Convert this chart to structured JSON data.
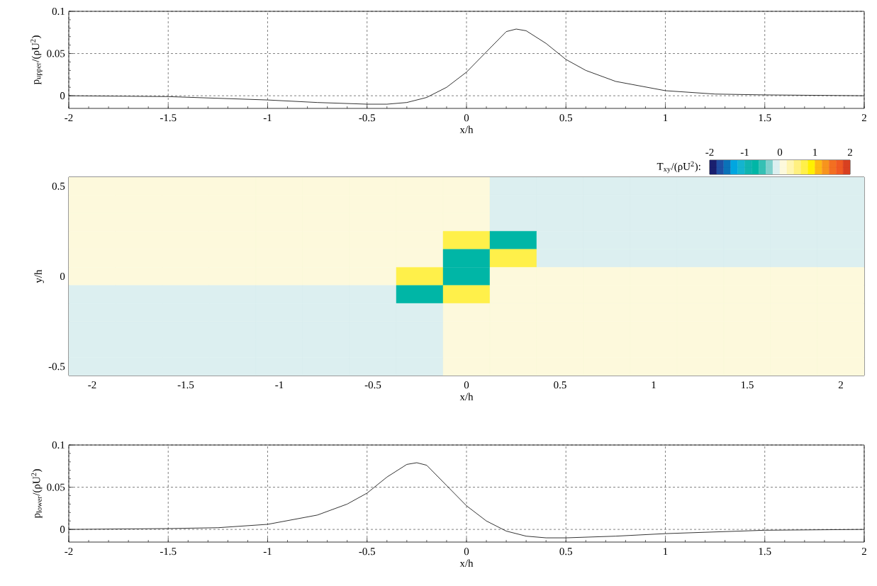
{
  "chart_data": [
    {
      "type": "line",
      "ylabel": "p$_{upper}$/(ρU$^{2}$)",
      "xlabel": "x/h",
      "x": [
        -2,
        -1.5,
        -1,
        -0.75,
        -0.5,
        -0.4,
        -0.3,
        -0.2,
        -0.1,
        0,
        0.1,
        0.2,
        0.25,
        0.3,
        0.4,
        0.5,
        0.6,
        0.75,
        1,
        1.25,
        1.5,
        2
      ],
      "series": [
        {
          "color": "#000000",
          "values": [
            0,
            -0.001,
            -0.005,
            -0.008,
            -0.01,
            -0.01,
            -0.008,
            -0.002,
            0.01,
            0.028,
            0.052,
            0.076,
            0.079,
            0.077,
            0.062,
            0.043,
            0.03,
            0.017,
            0.006,
            0.002,
            0.001,
            0
          ]
        }
      ],
      "xlim": [
        -2,
        2
      ],
      "ylim": [
        -0.015,
        0.1
      ],
      "xticks": [
        -2,
        -1.5,
        -1,
        -0.5,
        0,
        0.5,
        1,
        1.5,
        2
      ],
      "yticks": [
        0,
        0.05,
        0.1
      ],
      "grid": true,
      "line_style": "solid"
    },
    {
      "type": "heatmap",
      "ylabel": "y/h",
      "xlabel": "x/h",
      "clabel": "T$_{xy}$/(ρU$^{2}$):",
      "categories": [
        "-2",
        null,
        "-1.5",
        null,
        "-1",
        null,
        "-0.5",
        null,
        "0",
        null,
        "0.5",
        null,
        "1",
        null,
        "1.5",
        null,
        "2"
      ],
      "y_categories": [
        "0.5",
        null,
        null,
        null,
        null,
        "0",
        null,
        null,
        null,
        null,
        "-0.5"
      ],
      "cells": [
        [
          0.1,
          0.1,
          0.1,
          0.1,
          0.1,
          0.1,
          0.1,
          0.1,
          0.1,
          -0.1,
          -0.1,
          -0.1,
          -0.1,
          -0.1,
          -0.1,
          -0.1,
          -0.1
        ],
        [
          0.1,
          0.1,
          0.1,
          0.1,
          0.1,
          0.1,
          0.1,
          0.1,
          0.1,
          -0.1,
          -0.1,
          -0.1,
          -0.1,
          -0.1,
          -0.1,
          -0.1,
          -0.1
        ],
        [
          0.1,
          0.1,
          0.1,
          0.1,
          0.1,
          0.1,
          0.1,
          0.1,
          0.1,
          -0.1,
          -0.1,
          -0.1,
          -0.1,
          -0.1,
          -0.1,
          -0.1,
          -0.1
        ],
        [
          0.1,
          0.1,
          0.1,
          0.1,
          0.1,
          0.1,
          0.1,
          0.1,
          0.7,
          -0.7,
          -0.1,
          -0.1,
          -0.1,
          -0.1,
          -0.1,
          -0.1,
          -0.1
        ],
        [
          0.1,
          0.1,
          0.1,
          0.1,
          0.1,
          0.1,
          0.1,
          0.1,
          -0.7,
          0.7,
          -0.1,
          -0.1,
          -0.1,
          -0.1,
          -0.1,
          -0.1,
          -0.1
        ],
        [
          0.1,
          0.1,
          0.1,
          0.1,
          0.1,
          0.1,
          0.1,
          0.7,
          -0.7,
          0.1,
          0.1,
          0.1,
          0.1,
          0.1,
          0.1,
          0.1,
          0.1
        ],
        [
          -0.1,
          -0.1,
          -0.1,
          -0.1,
          -0.1,
          -0.1,
          -0.1,
          -0.7,
          0.7,
          0.1,
          0.1,
          0.1,
          0.1,
          0.1,
          0.1,
          0.1,
          0.1
        ],
        [
          -0.1,
          -0.1,
          -0.1,
          -0.1,
          -0.1,
          -0.1,
          -0.1,
          -0.1,
          0.1,
          0.1,
          0.1,
          0.1,
          0.1,
          0.1,
          0.1,
          0.1,
          0.1
        ],
        [
          -0.1,
          -0.1,
          -0.1,
          -0.1,
          -0.1,
          -0.1,
          -0.1,
          -0.1,
          0.1,
          0.1,
          0.1,
          0.1,
          0.1,
          0.1,
          0.1,
          0.1,
          0.1
        ],
        [
          -0.1,
          -0.1,
          -0.1,
          -0.1,
          -0.1,
          -0.1,
          -0.1,
          -0.1,
          0.1,
          0.1,
          0.1,
          0.1,
          0.1,
          0.1,
          0.1,
          0.1,
          0.1
        ],
        [
          -0.1,
          -0.1,
          -0.1,
          -0.1,
          -0.1,
          -0.1,
          -0.1,
          -0.1,
          0.1,
          0.1,
          0.1,
          0.1,
          0.1,
          0.1,
          0.1,
          0.1,
          0.1
        ]
      ],
      "clim": [
        -2,
        2
      ],
      "cticks": [
        -2,
        -1,
        0,
        1,
        2
      ]
    },
    {
      "type": "line",
      "ylabel": "p$_{lower}$/(ρU$^{2}$)",
      "xlabel": "x/h",
      "x": [
        -2,
        -1.5,
        -1.25,
        -1,
        -0.75,
        -0.6,
        -0.5,
        -0.4,
        -0.3,
        -0.25,
        -0.2,
        -0.1,
        0,
        0.1,
        0.2,
        0.3,
        0.4,
        0.5,
        0.75,
        1,
        1.5,
        2
      ],
      "series": [
        {
          "color": "#000000",
          "values": [
            0,
            0.001,
            0.002,
            0.006,
            0.017,
            0.03,
            0.043,
            0.062,
            0.077,
            0.079,
            0.076,
            0.052,
            0.028,
            0.01,
            -0.002,
            -0.008,
            -0.01,
            -0.01,
            -0.008,
            -0.005,
            -0.001,
            0
          ]
        }
      ],
      "xlim": [
        -2,
        2
      ],
      "ylim": [
        -0.015,
        0.1
      ],
      "xticks": [
        -2,
        -1.5,
        -1,
        -0.5,
        0,
        0.5,
        1,
        1.5,
        2
      ],
      "yticks": [
        0,
        0.05,
        0.1
      ],
      "grid": true,
      "line_style": "solid"
    }
  ]
}
